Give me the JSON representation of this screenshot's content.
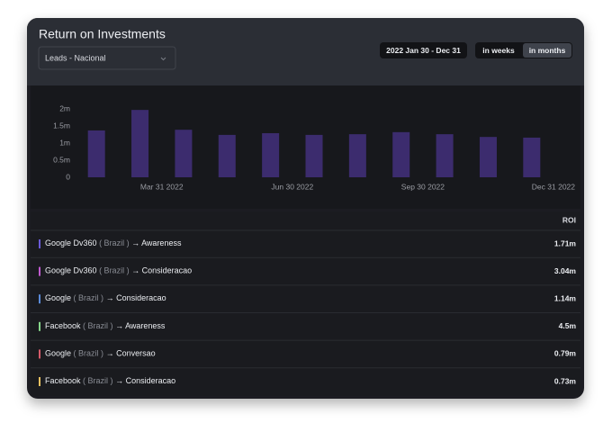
{
  "header": {
    "title": "Return on Investments",
    "dropdown": "Leads - Nacional",
    "date_range": "2022 Jan 30 - Dec 31",
    "toggle": [
      "in weeks",
      "in months"
    ],
    "active_toggle": 1
  },
  "chart_data": {
    "type": "bar",
    "categories": [
      null,
      null,
      null,
      null,
      null,
      null,
      null,
      null,
      null,
      null,
      null
    ],
    "values": [
      1.37,
      1.97,
      1.39,
      1.24,
      1.29,
      1.24,
      1.26,
      1.32,
      1.26,
      1.18,
      1.16
    ],
    "color": "#3c2c6e",
    "ylim": [
      0,
      2.1
    ],
    "yticks": [
      0,
      {
        "value": 0.5,
        "label": "0.5m"
      },
      {
        "value": 1,
        "label": "1m"
      },
      {
        "value": 1.5,
        "label": "1.5m"
      },
      {
        "value": 2,
        "label": "2m"
      }
    ],
    "xlim": [
      -0.5,
      10.5
    ],
    "xticks": [
      {
        "value": 1.5,
        "label": "Mar 31 2022"
      },
      {
        "value": 4.5,
        "label": "Jun 30 2022"
      },
      {
        "value": 7.5,
        "label": "Sep 30 2022"
      },
      {
        "value": 10.5,
        "label": "Dec 31 2022"
      }
    ],
    "grid": false
  },
  "table": {
    "header": "ROI",
    "arrow": "→",
    "rows": [
      {
        "source": "Google Dv360",
        "region": "( Brazil )",
        "target": "Awareness",
        "roi": "1.71m",
        "color": "#6a5ad8"
      },
      {
        "source": "Google Dv360",
        "region": "( Brazil )",
        "target": "Consideracao",
        "roi": "3.04m",
        "color": "#c05ad0"
      },
      {
        "source": "Google",
        "region": "( Brazil )",
        "target": "Consideracao",
        "roi": "1.14m",
        "color": "#5a8ad8"
      },
      {
        "source": "Facebook",
        "region": "( Brazil )",
        "target": "Awareness",
        "roi": "4.5m",
        "color": "#86d68a"
      },
      {
        "source": "Google",
        "region": "( Brazil )",
        "target": "Conversao",
        "roi": "0.79m",
        "color": "#d65a6a"
      },
      {
        "source": "Facebook",
        "region": "( Brazil )",
        "target": "Consideracao",
        "roi": "0.73m",
        "color": "#e8c060"
      }
    ]
  }
}
